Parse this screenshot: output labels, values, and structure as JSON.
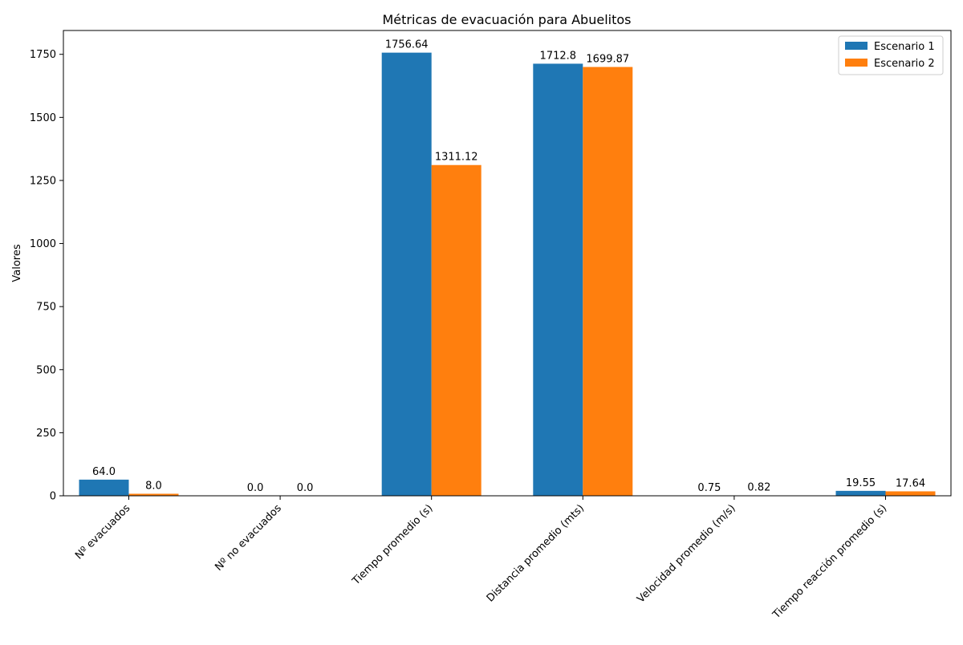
{
  "chart_data": {
    "type": "bar",
    "title": "Métricas de evacuación para Abuelitos",
    "xlabel": "",
    "ylabel": "Valores",
    "categories": [
      "Nº evacuados",
      "Nº no evacuados",
      "Tiempo promedio (s)",
      "Distancia promedio (mts)",
      "Velocidad promedio (m/s)",
      "Tiempo reacción promedio (s)"
    ],
    "series": [
      {
        "name": "Escenario 1",
        "color": "#1f77b4",
        "values": [
          64.0,
          0.0,
          1756.64,
          1712.8,
          0.75,
          19.55
        ],
        "labels": [
          "64.0",
          "0.0",
          "1756.64",
          "1712.8",
          "0.75",
          "19.55"
        ]
      },
      {
        "name": "Escenario 2",
        "color": "#ff7f0e",
        "values": [
          8.0,
          0.0,
          1311.12,
          1699.87,
          0.82,
          17.64
        ],
        "labels": [
          "8.0",
          "0.0",
          "1311.12",
          "1699.87",
          "0.82",
          "17.64"
        ]
      }
    ],
    "ylim": [
      0,
      1844.5
    ],
    "yticks": [
      0,
      250,
      500,
      750,
      1000,
      1250,
      1500,
      1750
    ],
    "grid": false,
    "legend_position": "top-right"
  }
}
